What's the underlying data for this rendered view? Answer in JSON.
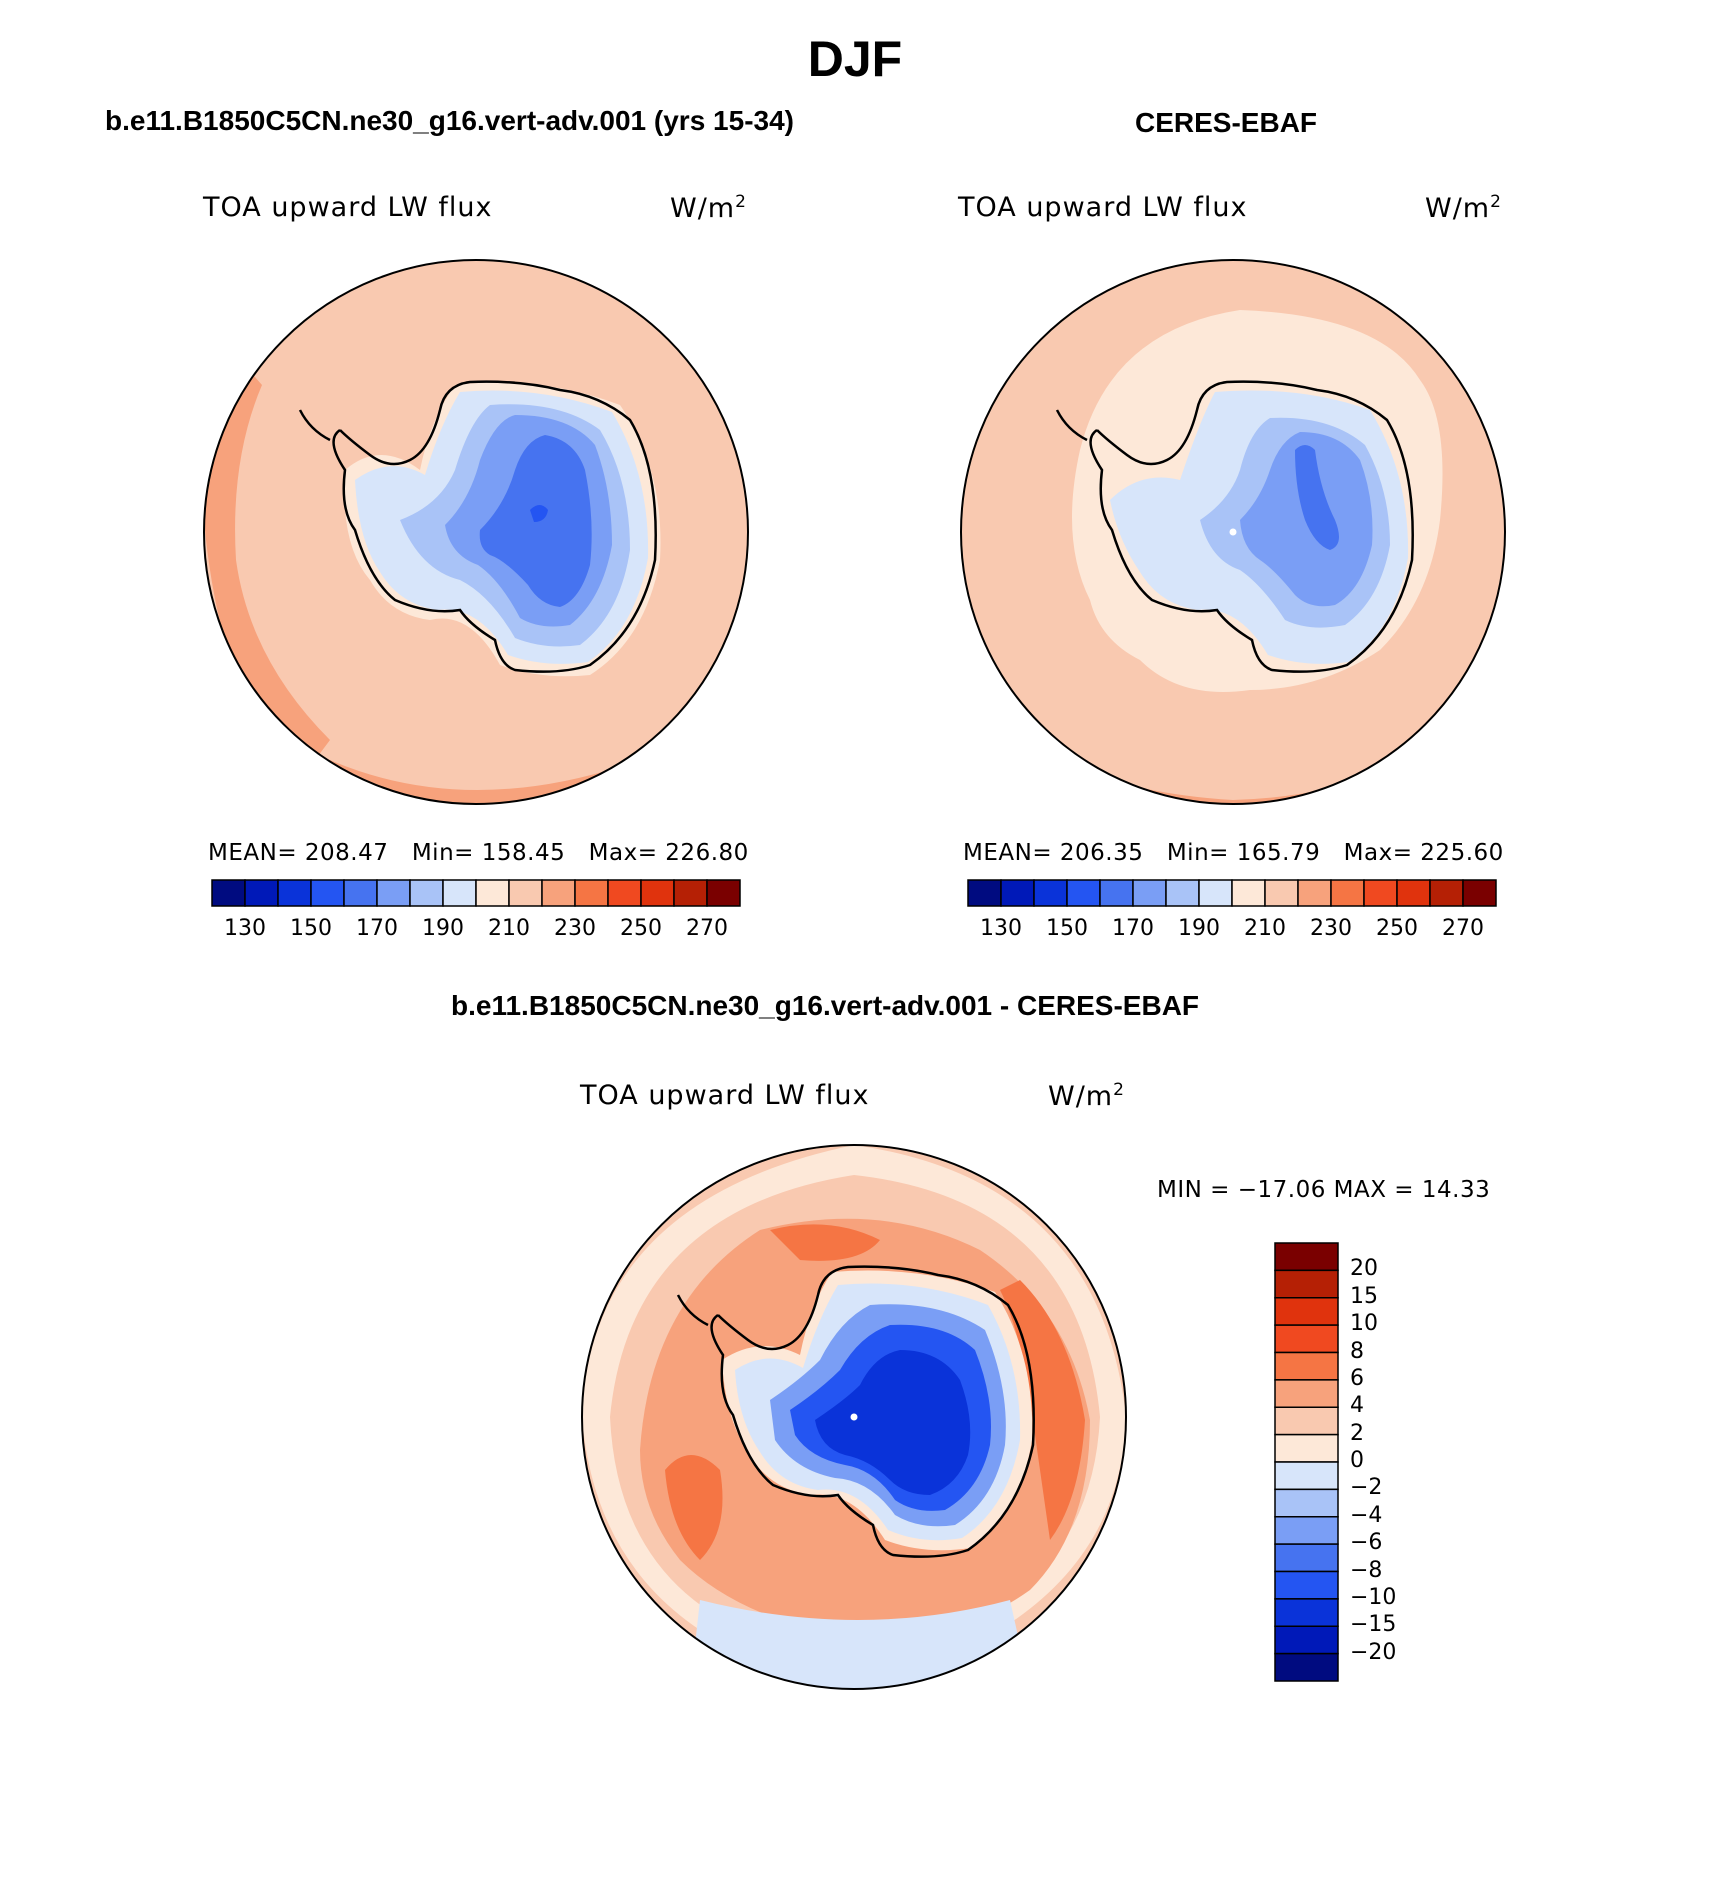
{
  "figure": {
    "season": "DJF",
    "left_caption": "b.e11.B1850C5CN.ne30_g16.vert-adv.001 (yrs 15-34)",
    "right_caption": "CERES-EBAF",
    "diff_caption": "b.e11.B1850C5CN.ne30_g16.vert-adv.001 - CERES-EBAF"
  },
  "panels": {
    "model": {
      "variable": "TOA upward LW flux",
      "units_base": "W/m",
      "units_exp": "2",
      "mean_label": "MEAN=",
      "mean": "208.47",
      "min_label": "Min=",
      "min": "158.45",
      "max_label": "Max=",
      "max": "226.80"
    },
    "obs": {
      "variable": "TOA upward LW flux",
      "units_base": "W/m",
      "units_exp": "2",
      "mean_label": "MEAN=",
      "mean": "206.35",
      "min_label": "Min=",
      "min": "165.79",
      "max_label": "Max=",
      "max": "225.60"
    },
    "diff": {
      "variable": "TOA upward LW flux",
      "units_base": "W/m",
      "units_exp": "2",
      "minmax_text": "MIN = −17.06 MAX =  14.33"
    }
  },
  "colorbars": {
    "abs_labels": [
      "130",
      "150",
      "170",
      "190",
      "210",
      "230",
      "250",
      "270"
    ],
    "abs_colors": [
      "#000b80",
      "#0019b8",
      "#0a33d9",
      "#2455f2",
      "#4673f0",
      "#7a9ef5",
      "#a9c3f7",
      "#d7e5fa",
      "#fde8d8",
      "#f9c9b0",
      "#f7a27c",
      "#f57544",
      "#f04920",
      "#e0330d",
      "#b52005",
      "#7a0000"
    ],
    "diff_labels": [
      "20",
      "15",
      "10",
      "8",
      "6",
      "4",
      "2",
      "0",
      "−2",
      "−4",
      "−6",
      "−8",
      "−10",
      "−15",
      "−20"
    ],
    "diff_colors": [
      "#7a0000",
      "#b52005",
      "#e0330d",
      "#f04920",
      "#f57544",
      "#f7a27c",
      "#f9c9b0",
      "#fde8d8",
      "#d7e5fa",
      "#a9c3f7",
      "#7a9ef5",
      "#4673f0",
      "#2455f2",
      "#0a33d9",
      "#0019b8",
      "#000b80"
    ]
  },
  "map_colors": {
    "ocean_a": "#f9c9b0",
    "ocean_b": "#f7a27c",
    "ocean_c": "#fde8d8",
    "ice_1": "#d7e5fa",
    "ice_2": "#a9c3f7",
    "ice_3": "#7a9ef5",
    "ice_4": "#4673f0",
    "ice_5": "#2455f2",
    "diff_pos_1": "#fde8d8",
    "diff_pos_2": "#f9c9b0",
    "diff_pos_3": "#f7a27c",
    "diff_pos_4": "#f57544",
    "diff_neg_1": "#d7e5fa",
    "diff_neg_2": "#7a9ef5",
    "diff_neg_3": "#2455f2",
    "diff_neg_4": "#0a33d9"
  }
}
